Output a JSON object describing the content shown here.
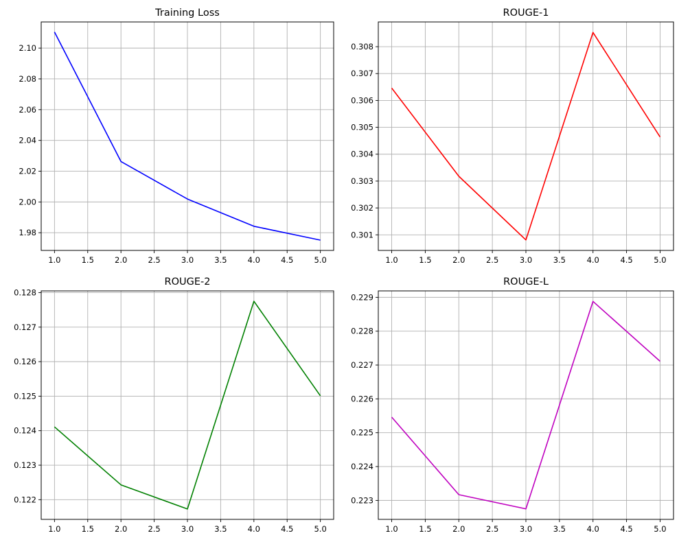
{
  "chart_data": [
    {
      "type": "line",
      "title": "Training Loss",
      "x": [
        1,
        2,
        3,
        4,
        5
      ],
      "series": [
        {
          "values": [
            2.1105,
            2.0263,
            2.0019,
            1.9842,
            1.9752
          ],
          "color": "#0000ff"
        }
      ],
      "xlim": [
        0.8,
        5.2
      ],
      "ylim": [
        1.9685,
        2.117
      ],
      "xticks": [
        1.0,
        1.5,
        2.0,
        2.5,
        3.0,
        3.5,
        4.0,
        4.5,
        5.0
      ],
      "xtick_labels": [
        "1.0",
        "1.5",
        "2.0",
        "2.5",
        "3.0",
        "3.5",
        "4.0",
        "4.5",
        "5.0"
      ],
      "yticks": [
        1.98,
        2.0,
        2.02,
        2.04,
        2.06,
        2.08,
        2.1
      ],
      "ytick_labels": [
        "1.98",
        "2.00",
        "2.02",
        "2.04",
        "2.06",
        "2.08",
        "2.10"
      ],
      "grid": true
    },
    {
      "type": "line",
      "title": "ROUGE-1",
      "x": [
        1,
        2,
        3,
        4,
        5
      ],
      "series": [
        {
          "values": [
            0.30646,
            0.30318,
            0.30081,
            0.30853,
            0.30464
          ],
          "color": "#ff0000"
        }
      ],
      "xlim": [
        0.8,
        5.2
      ],
      "ylim": [
        0.30042,
        0.30892
      ],
      "xticks": [
        1.0,
        1.5,
        2.0,
        2.5,
        3.0,
        3.5,
        4.0,
        4.5,
        5.0
      ],
      "xtick_labels": [
        "1.0",
        "1.5",
        "2.0",
        "2.5",
        "3.0",
        "3.5",
        "4.0",
        "4.5",
        "5.0"
      ],
      "yticks": [
        0.301,
        0.302,
        0.303,
        0.304,
        0.305,
        0.306,
        0.307,
        0.308
      ],
      "ytick_labels": [
        "0.301",
        "0.302",
        "0.303",
        "0.304",
        "0.305",
        "0.306",
        "0.307",
        "0.308"
      ],
      "grid": true
    },
    {
      "type": "line",
      "title": "ROUGE-2",
      "x": [
        1,
        2,
        3,
        4,
        5
      ],
      "series": [
        {
          "values": [
            0.12411,
            0.12243,
            0.12173,
            0.12775,
            0.12501
          ],
          "color": "#008000"
        }
      ],
      "xlim": [
        0.8,
        5.2
      ],
      "ylim": [
        0.12143,
        0.12805
      ],
      "xticks": [
        1.0,
        1.5,
        2.0,
        2.5,
        3.0,
        3.5,
        4.0,
        4.5,
        5.0
      ],
      "xtick_labels": [
        "1.0",
        "1.5",
        "2.0",
        "2.5",
        "3.0",
        "3.5",
        "4.0",
        "4.5",
        "5.0"
      ],
      "yticks": [
        0.122,
        0.123,
        0.124,
        0.125,
        0.126,
        0.127,
        0.128
      ],
      "ytick_labels": [
        "0.122",
        "0.123",
        "0.124",
        "0.125",
        "0.126",
        "0.127",
        "0.128"
      ],
      "grid": true
    },
    {
      "type": "line",
      "title": "ROUGE-L",
      "x": [
        1,
        2,
        3,
        4,
        5
      ],
      "series": [
        {
          "values": [
            0.22546,
            0.22317,
            0.22275,
            0.22888,
            0.22711
          ],
          "color": "#bf00bf"
        }
      ],
      "xlim": [
        0.8,
        5.2
      ],
      "ylim": [
        0.22244,
        0.22919
      ],
      "xticks": [
        1.0,
        1.5,
        2.0,
        2.5,
        3.0,
        3.5,
        4.0,
        4.5,
        5.0
      ],
      "xtick_labels": [
        "1.0",
        "1.5",
        "2.0",
        "2.5",
        "3.0",
        "3.5",
        "4.0",
        "4.5",
        "5.0"
      ],
      "yticks": [
        0.223,
        0.224,
        0.225,
        0.226,
        0.227,
        0.228,
        0.229
      ],
      "ytick_labels": [
        "0.223",
        "0.224",
        "0.225",
        "0.226",
        "0.227",
        "0.228",
        "0.229"
      ],
      "grid": true
    }
  ]
}
